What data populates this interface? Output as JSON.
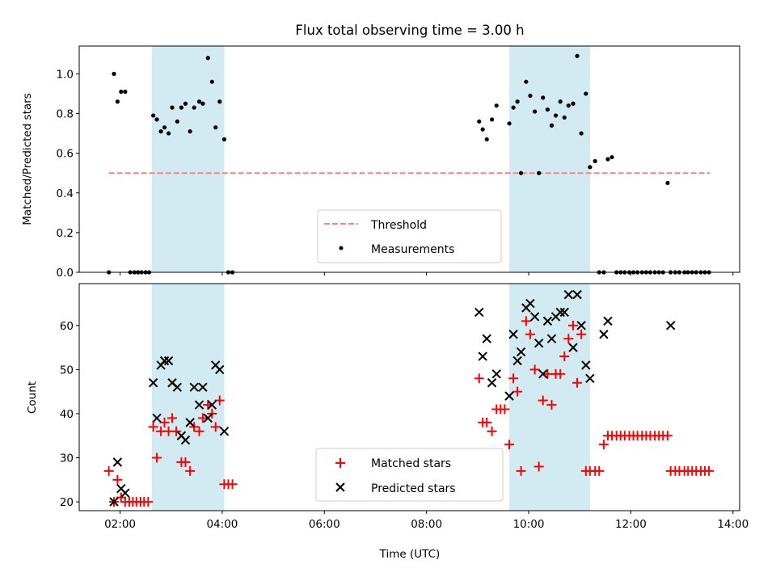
{
  "title": "Flux total observing time = 3.00 h",
  "colors": {
    "threshold": "#ff8080",
    "measurement": "#000000",
    "matched": "#ff0000",
    "predicted": "#000000",
    "span": "#add8e6"
  },
  "chart_data": [
    {
      "type": "scatter",
      "ylabel": "Matched/Predicted stars",
      "xlim": [
        1.2,
        14.13
      ],
      "ylim": [
        0,
        1.14
      ],
      "yticks": [
        0.0,
        0.2,
        0.4,
        0.6,
        0.8,
        1.0
      ],
      "ytick_labels": [
        "0.0",
        "0.2",
        "0.4",
        "0.6",
        "0.8",
        "1.0"
      ],
      "xticks": [
        2,
        4,
        6,
        8,
        10,
        12,
        14
      ],
      "shaded_spans": [
        [
          2.62,
          4.04
        ],
        [
          9.62,
          11.2
        ]
      ],
      "threshold": {
        "label": "Threshold",
        "value": 0.5,
        "x": [
          1.78,
          13.55
        ]
      },
      "legend": {
        "position": "lower-center",
        "entries": [
          "Threshold",
          "Measurements"
        ]
      },
      "series": [
        {
          "name": "Measurements",
          "x": [
            1.78,
            1.88,
            1.95,
            2.02,
            2.1,
            2.2,
            2.28,
            2.35,
            2.42,
            2.5,
            2.57,
            2.65,
            2.72,
            2.8,
            2.87,
            2.95,
            3.02,
            3.12,
            3.2,
            3.28,
            3.37,
            3.45,
            3.55,
            3.62,
            3.72,
            3.8,
            3.87,
            3.95,
            4.04,
            4.12,
            4.2,
            9.03,
            9.1,
            9.18,
            9.28,
            9.37,
            9.62,
            9.7,
            9.78,
            9.85,
            9.95,
            10.03,
            10.12,
            10.2,
            10.28,
            10.37,
            10.45,
            10.53,
            10.62,
            10.7,
            10.78,
            10.87,
            10.95,
            11.03,
            11.12,
            11.2,
            11.3,
            11.38,
            11.47,
            11.55,
            11.63,
            11.72,
            11.8,
            11.88,
            11.97,
            12.05,
            12.13,
            12.22,
            12.3,
            12.38,
            12.47,
            12.55,
            12.63,
            12.72,
            12.78,
            12.87,
            12.95,
            13.05,
            13.12,
            13.2,
            13.28,
            13.37,
            13.45,
            13.53
          ],
          "y": [
            0.0,
            1.0,
            0.86,
            0.91,
            0.91,
            0.0,
            0.0,
            0.0,
            0.0,
            0.0,
            0.0,
            0.79,
            0.77,
            0.71,
            0.73,
            0.7,
            0.83,
            0.76,
            0.83,
            0.85,
            0.71,
            0.83,
            0.86,
            0.85,
            1.08,
            0.96,
            0.73,
            0.86,
            0.67,
            0.0,
            0.0,
            0.76,
            0.72,
            0.67,
            0.77,
            0.84,
            0.75,
            0.83,
            0.86,
            0.5,
            0.96,
            0.89,
            0.81,
            0.5,
            0.88,
            0.82,
            0.74,
            0.79,
            0.86,
            0.78,
            0.84,
            0.85,
            1.09,
            0.7,
            0.9,
            0.53,
            0.56,
            0.0,
            0.0,
            0.57,
            0.58,
            0.0,
            0.0,
            0.0,
            0.0,
            0.0,
            0.0,
            0.0,
            0.0,
            0.0,
            0.0,
            0.0,
            0.0,
            0.45,
            0.0,
            0.0,
            0.0,
            0.0,
            0.0,
            0.0,
            0.0,
            0.0,
            0.0,
            0.0
          ]
        }
      ]
    },
    {
      "type": "scatter",
      "xlabel": "Time (UTC)",
      "ylabel": "Count",
      "xlim": [
        1.2,
        14.13
      ],
      "ylim": [
        18,
        69.5
      ],
      "yticks": [
        20,
        30,
        40,
        50,
        60
      ],
      "ytick_labels": [
        "20",
        "30",
        "40",
        "50",
        "60"
      ],
      "xticks": [
        2,
        4,
        6,
        8,
        10,
        12,
        14
      ],
      "xtick_labels": [
        "02:00",
        "04:00",
        "06:00",
        "08:00",
        "10:00",
        "12:00",
        "14:00"
      ],
      "shaded_spans": [
        [
          2.62,
          4.04
        ],
        [
          9.62,
          11.2
        ]
      ],
      "legend": {
        "position": "lower-center",
        "entries": [
          "Matched stars",
          "Predicted stars"
        ]
      },
      "series": [
        {
          "name": "Matched stars",
          "x": [
            1.78,
            1.88,
            1.95,
            2.02,
            2.1,
            2.18,
            2.25,
            2.32,
            2.4,
            2.47,
            2.55,
            2.65,
            2.72,
            2.8,
            2.87,
            2.95,
            3.02,
            3.1,
            3.2,
            3.28,
            3.37,
            3.45,
            3.55,
            3.62,
            3.72,
            3.8,
            3.87,
            3.95,
            4.04,
            4.12,
            4.2,
            9.03,
            9.1,
            9.18,
            9.28,
            9.37,
            9.45,
            9.53,
            9.62,
            9.7,
            9.78,
            9.85,
            9.95,
            10.03,
            10.12,
            10.2,
            10.28,
            10.37,
            10.45,
            10.53,
            10.62,
            10.7,
            10.78,
            10.87,
            10.95,
            11.03,
            11.12,
            11.2,
            11.3,
            11.38,
            11.47,
            11.55,
            11.63,
            11.72,
            11.8,
            11.88,
            11.97,
            12.05,
            12.13,
            12.22,
            12.3,
            12.38,
            12.47,
            12.55,
            12.63,
            12.72,
            12.78,
            12.87,
            12.95,
            13.05,
            13.12,
            13.2,
            13.28,
            13.37,
            13.45,
            13.53
          ],
          "y": [
            27,
            20,
            25,
            21,
            20,
            20,
            20,
            20,
            20,
            20,
            20,
            37,
            30,
            36,
            38,
            36,
            39,
            36,
            29,
            29,
            27,
            37,
            36,
            39,
            42,
            40,
            37,
            43,
            24,
            24,
            24,
            48,
            38,
            38,
            36,
            41,
            41,
            41,
            33,
            48,
            45,
            27,
            61,
            58,
            50,
            28,
            43,
            49,
            42,
            49,
            49,
            53,
            57,
            60,
            47,
            58,
            27,
            27,
            27,
            27,
            33,
            35,
            35,
            35,
            35,
            35,
            35,
            35,
            35,
            35,
            35,
            35,
            35,
            35,
            35,
            35,
            27,
            27,
            27,
            27,
            27,
            27,
            27,
            27,
            27,
            27
          ]
        },
        {
          "name": "Predicted stars",
          "x": [
            1.88,
            1.95,
            2.02,
            2.1,
            2.65,
            2.72,
            2.8,
            2.87,
            2.95,
            3.02,
            3.12,
            3.2,
            3.28,
            3.37,
            3.45,
            3.55,
            3.62,
            3.72,
            3.8,
            3.87,
            3.95,
            4.04,
            9.03,
            9.1,
            9.18,
            9.28,
            9.37,
            9.62,
            9.7,
            9.78,
            9.85,
            9.95,
            10.03,
            10.12,
            10.2,
            10.28,
            10.37,
            10.45,
            10.53,
            10.62,
            10.7,
            10.78,
            10.87,
            10.95,
            11.03,
            11.12,
            11.2,
            11.47,
            11.55,
            12.78
          ],
          "y": [
            20,
            29,
            23,
            22,
            47,
            39,
            51,
            52,
            52,
            47,
            46,
            35,
            34,
            38,
            46,
            42,
            46,
            39,
            42,
            51,
            50,
            36,
            63,
            53,
            57,
            47,
            49,
            44,
            58,
            52,
            54,
            64,
            65,
            62,
            56,
            49,
            61,
            57,
            62,
            63,
            63,
            67,
            55,
            67,
            60,
            51,
            48,
            58,
            61,
            60
          ]
        }
      ]
    }
  ]
}
